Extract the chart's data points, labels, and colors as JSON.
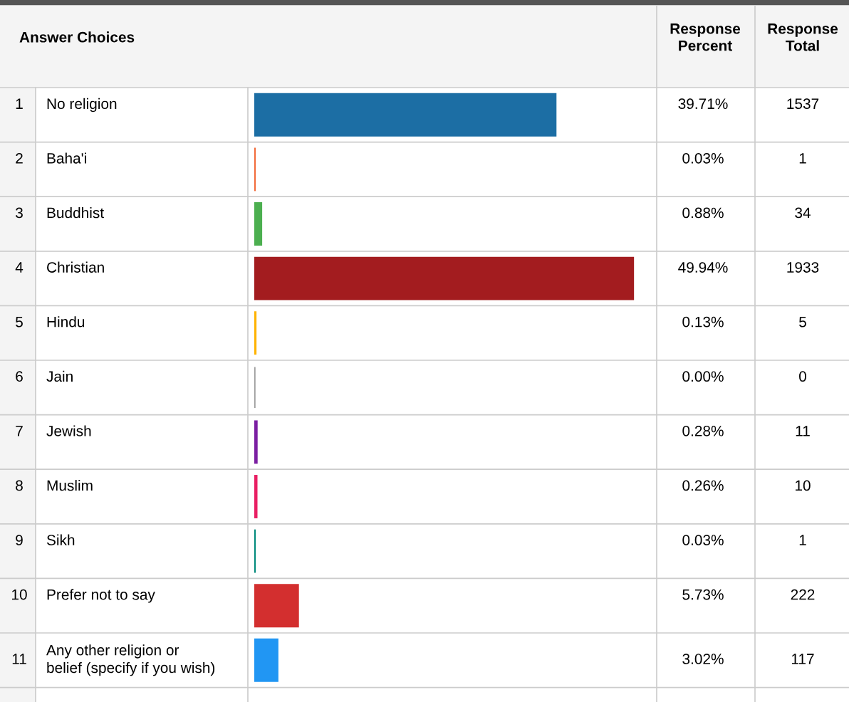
{
  "chart_data": {
    "type": "bar",
    "orientation": "horizontal",
    "ylabel": "Answer Choices",
    "categories": [
      "No religion",
      "Baha'i",
      "Buddhist",
      "Christian",
      "Hindu",
      "Jain",
      "Jewish",
      "Muslim",
      "Sikh",
      "Prefer not to say",
      "Any other religion or belief (specify if you wish)"
    ],
    "values": [
      39.71,
      0.03,
      0.88,
      49.94,
      0.13,
      0.0,
      0.28,
      0.26,
      0.03,
      5.73,
      3.02
    ],
    "colors": [
      "#1c6ea4",
      "#f26b3a",
      "#4caf50",
      "#a31c1f",
      "#ffb300",
      "#9e9e9e",
      "#7b1fa2",
      "#e91e63",
      "#00897b",
      "#d32f2f",
      "#2196f3"
    ],
    "value_labels": [
      "39.71%",
      "0.03%",
      "0.88%",
      "49.94%",
      "0.13%",
      "0.00%",
      "0.28%",
      "0.26%",
      "0.03%",
      "5.73%",
      "3.02%"
    ],
    "annotations": [
      "Response Percent",
      "Response Total",
      "1",
      "2",
      "3",
      "4",
      "5",
      "6",
      "7",
      "8",
      "9",
      "10",
      "11",
      "1537",
      "1",
      "34",
      "1933",
      "5",
      "0",
      "11",
      "10",
      "1",
      "222",
      "117"
    ]
  }
}
